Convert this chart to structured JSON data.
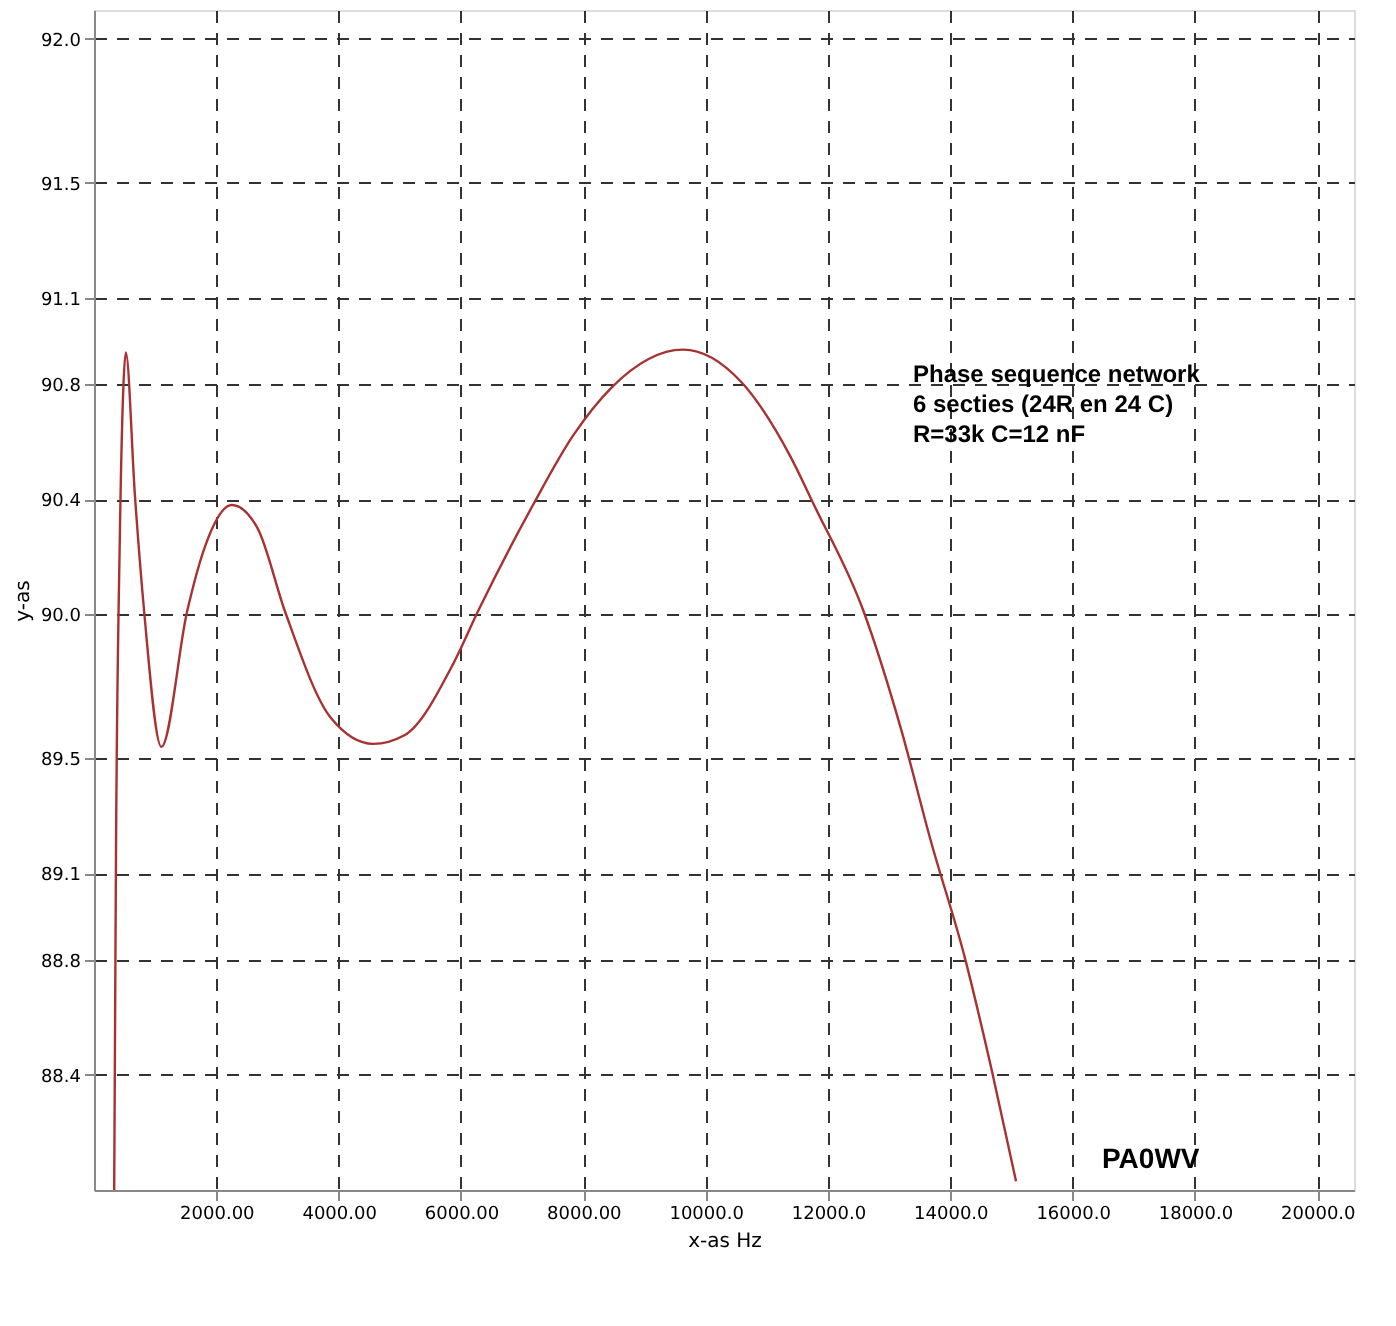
{
  "chart_data": {
    "type": "line",
    "xlabel": "x-as Hz",
    "ylabel": "y-as",
    "annotations": [
      "Phase sequence network\n6 secties (24R en 24 C)\nR=33k C=12 nF",
      "PA0WV"
    ],
    "x": [
      330,
      360,
      420,
      480,
      520,
      670,
      820,
      1102,
      1522,
      1822,
      2252,
      2673,
      3123,
      3874,
      4565,
      5075,
      5877,
      6276,
      7177,
      7829,
      8469,
      9631,
      10571,
      11382,
      11772,
      12583,
      13183,
      13685,
      14234,
      14684,
      15075
    ],
    "series": [
      {
        "color": "#a83232",
        "values": [
          88.0,
          89.19,
          90.24,
          90.79,
          90.91,
          90.41,
          90.01,
          89.54,
          90.01,
          90.24,
          90.38,
          90.3,
          90.01,
          89.64,
          89.55,
          89.58,
          89.83,
          90.01,
          90.38,
          90.62,
          90.79,
          90.92,
          90.81,
          90.55,
          90.38,
          90.01,
          89.61,
          89.21,
          88.81,
          88.41,
          88.03
        ]
      }
    ],
    "xlim": [
      0,
      20600
    ],
    "ylim": [
      88.0,
      92.1
    ],
    "xticks": [
      {
        "value": 2000,
        "label": "2000.00"
      },
      {
        "value": 4000,
        "label": "4000.00"
      },
      {
        "value": 6000,
        "label": "6000.00"
      },
      {
        "value": 8000,
        "label": "8000.00"
      },
      {
        "value": 10000,
        "label": "10000.0"
      },
      {
        "value": 12000,
        "label": "12000.0"
      },
      {
        "value": 14000,
        "label": "14000.0"
      },
      {
        "value": 16000,
        "label": "16000.0"
      },
      {
        "value": 18000,
        "label": "18000.0"
      },
      {
        "value": 20000,
        "label": "20000.0"
      }
    ],
    "yticks": [
      {
        "value": 88.4,
        "label": "88.4"
      },
      {
        "value": 88.8,
        "label": "88.8"
      },
      89.1,
      89.5,
      {
        "value": 90.0,
        "label": "90.0"
      },
      90.4,
      90.8,
      91.1,
      91.5,
      {
        "value": 92.0,
        "label": "92.0"
      }
    ],
    "grid": true,
    "line_style": "solid",
    "marker": "none"
  }
}
